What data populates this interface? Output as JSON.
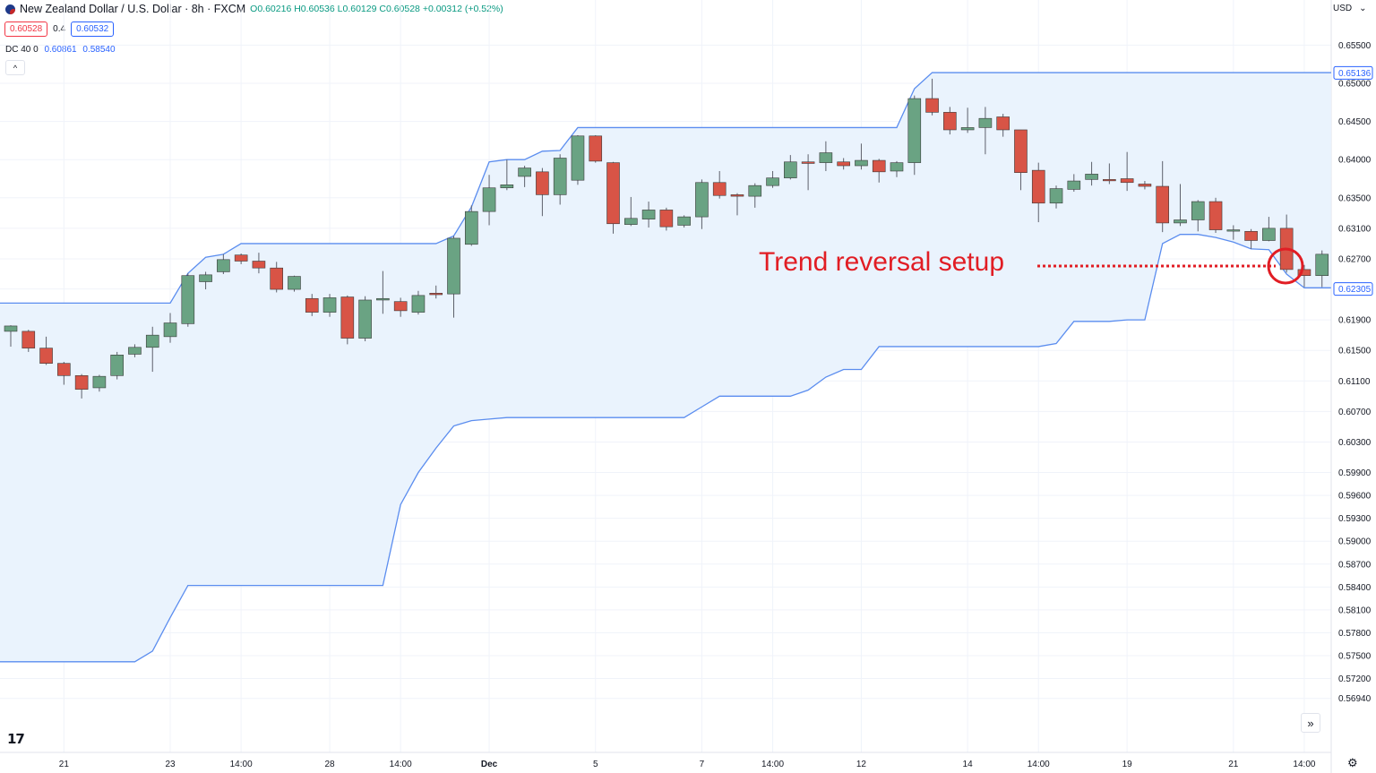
{
  "header": {
    "symbol": "New Zealand Dollar / U.S. Dollar · 8h · FXCM",
    "ohlc": "O0.60216 H0.60536 L0.60129 C0.60528 +0.00312 (+0.52%)",
    "sell_price": "0.60528",
    "spread": "0.4",
    "buy_price": "0.60532",
    "indicator_name": "DC 40 0",
    "indicator_upper": "0.60861",
    "indicator_lower": "0.58540",
    "collapse_icon": "^",
    "currency": "USD",
    "currency_icon": "⌄"
  },
  "controls": {
    "logo": "17",
    "scroll_icon": "»",
    "settings_icon": "⚙"
  },
  "annotation": {
    "text": "Trend reversal setup",
    "color": "#e11d24"
  },
  "colors": {
    "up": "#6aa383",
    "down": "#d85446",
    "channel_line": "#5b8def",
    "channel_fill": "#eaf3fd",
    "price_label": "#2962ff"
  },
  "chart_data": {
    "type": "candlestick",
    "title": "New Zealand Dollar / U.S. Dollar · 8h · FXCM",
    "ylim": [
      0.5675,
      0.6575
    ],
    "y_ticks": [
      "0.65500",
      "0.65000",
      "0.64500",
      "0.64000",
      "0.63500",
      "0.63100",
      "0.62700",
      "0.62305",
      "0.61900",
      "0.61500",
      "0.61100",
      "0.60700",
      "0.60300",
      "0.59900",
      "0.59600",
      "0.59300",
      "0.59000",
      "0.58700",
      "0.58400",
      "0.58100",
      "0.57800",
      "0.57500",
      "0.57200",
      "0.56940"
    ],
    "x_ticks": [
      {
        "label": "21",
        "i": 3
      },
      {
        "label": "23",
        "i": 9
      },
      {
        "label": "14:00",
        "i": 13
      },
      {
        "label": "28",
        "i": 18
      },
      {
        "label": "14:00",
        "i": 22
      },
      {
        "label": "Dec",
        "i": 27
      },
      {
        "label": "5",
        "i": 33
      },
      {
        "label": "7",
        "i": 39
      },
      {
        "label": "14:00",
        "i": 43
      },
      {
        "label": "12",
        "i": 48
      },
      {
        "label": "14",
        "i": 54
      },
      {
        "label": "14:00",
        "i": 58
      },
      {
        "label": "19",
        "i": 63
      },
      {
        "label": "21",
        "i": 69
      },
      {
        "label": "14:00",
        "i": 73
      }
    ],
    "price_labels": [
      {
        "value": "0.65136",
        "y": 0.65136
      },
      {
        "value": "0.62305",
        "y": 0.62305
      }
    ],
    "candles": [
      [
        0.6175,
        0.6182,
        0.6155,
        0.6183
      ],
      [
        0.6175,
        0.6153,
        0.6148,
        0.6177
      ],
      [
        0.6153,
        0.6133,
        0.6131,
        0.6168
      ],
      [
        0.6133,
        0.6117,
        0.6105,
        0.6135
      ],
      [
        0.6117,
        0.6099,
        0.6087,
        0.6119
      ],
      [
        0.6101,
        0.6116,
        0.6096,
        0.6118
      ],
      [
        0.6117,
        0.6144,
        0.6112,
        0.6148
      ],
      [
        0.6145,
        0.6154,
        0.6141,
        0.6158
      ],
      [
        0.6154,
        0.617,
        0.6122,
        0.6181
      ],
      [
        0.6168,
        0.6186,
        0.616,
        0.6199
      ],
      [
        0.6185,
        0.6248,
        0.6181,
        0.6251
      ],
      [
        0.624,
        0.6249,
        0.623,
        0.6253
      ],
      [
        0.6253,
        0.6269,
        0.625,
        0.6276
      ],
      [
        0.6275,
        0.6267,
        0.6263,
        0.6277
      ],
      [
        0.6267,
        0.6258,
        0.6251,
        0.6278
      ],
      [
        0.6258,
        0.623,
        0.6226,
        0.6266
      ],
      [
        0.623,
        0.6247,
        0.6227,
        0.6248
      ],
      [
        0.6218,
        0.62,
        0.6195,
        0.6224
      ],
      [
        0.62,
        0.6219,
        0.6194,
        0.6224
      ],
      [
        0.622,
        0.6166,
        0.6158,
        0.6222
      ],
      [
        0.6166,
        0.6216,
        0.6162,
        0.6221
      ],
      [
        0.6216,
        0.6218,
        0.6198,
        0.6254
      ],
      [
        0.6214,
        0.6202,
        0.6194,
        0.6219
      ],
      [
        0.62,
        0.6222,
        0.6197,
        0.6228
      ],
      [
        0.6225,
        0.6223,
        0.6218,
        0.6235
      ],
      [
        0.6224,
        0.6297,
        0.6193,
        0.63
      ],
      [
        0.6289,
        0.6332,
        0.6287,
        0.634
      ],
      [
        0.6332,
        0.6363,
        0.6314,
        0.638
      ],
      [
        0.6363,
        0.6367,
        0.636,
        0.64
      ],
      [
        0.6378,
        0.6389,
        0.6364,
        0.6392
      ],
      [
        0.6384,
        0.6354,
        0.6326,
        0.6389
      ],
      [
        0.6354,
        0.6402,
        0.6341,
        0.6407
      ],
      [
        0.6373,
        0.6431,
        0.6367,
        0.6432
      ],
      [
        0.6431,
        0.6398,
        0.6396,
        0.6432
      ],
      [
        0.6396,
        0.6316,
        0.6303,
        0.6397
      ],
      [
        0.6315,
        0.6323,
        0.6313,
        0.6351
      ],
      [
        0.6322,
        0.6334,
        0.6311,
        0.6345
      ],
      [
        0.6334,
        0.6312,
        0.6307,
        0.6337
      ],
      [
        0.6314,
        0.6325,
        0.6311,
        0.6327
      ],
      [
        0.6325,
        0.637,
        0.6309,
        0.6374
      ],
      [
        0.637,
        0.6353,
        0.6349,
        0.6385
      ],
      [
        0.6354,
        0.6352,
        0.6327,
        0.6356
      ],
      [
        0.6352,
        0.6366,
        0.6337,
        0.6369
      ],
      [
        0.6366,
        0.6376,
        0.6363,
        0.6385
      ],
      [
        0.6376,
        0.6397,
        0.6374,
        0.6406
      ],
      [
        0.6397,
        0.6395,
        0.636,
        0.6407
      ],
      [
        0.6396,
        0.6409,
        0.6385,
        0.6424
      ],
      [
        0.6397,
        0.6392,
        0.6387,
        0.6402
      ],
      [
        0.6392,
        0.6399,
        0.6387,
        0.6421
      ],
      [
        0.6399,
        0.6384,
        0.637,
        0.6401
      ],
      [
        0.6385,
        0.6396,
        0.6377,
        0.6398
      ],
      [
        0.6396,
        0.648,
        0.638,
        0.6484
      ],
      [
        0.648,
        0.6462,
        0.6458,
        0.6506
      ],
      [
        0.6462,
        0.6439,
        0.6433,
        0.6469
      ],
      [
        0.6439,
        0.6442,
        0.6435,
        0.6468
      ],
      [
        0.6442,
        0.6454,
        0.6407,
        0.6469
      ],
      [
        0.6456,
        0.6439,
        0.643,
        0.646
      ],
      [
        0.6439,
        0.6383,
        0.636,
        0.6439
      ],
      [
        0.6386,
        0.6343,
        0.6318,
        0.6396
      ],
      [
        0.6343,
        0.6362,
        0.6336,
        0.6366
      ],
      [
        0.6361,
        0.6372,
        0.6358,
        0.6381
      ],
      [
        0.6374,
        0.6381,
        0.6366,
        0.6397
      ],
      [
        0.6374,
        0.6373,
        0.6368,
        0.6395
      ],
      [
        0.6375,
        0.637,
        0.6359,
        0.641
      ],
      [
        0.6368,
        0.6365,
        0.6361,
        0.6372
      ],
      [
        0.6365,
        0.6317,
        0.6305,
        0.6398
      ],
      [
        0.6317,
        0.6321,
        0.6313,
        0.6368
      ],
      [
        0.6321,
        0.6345,
        0.6306,
        0.6347
      ],
      [
        0.6345,
        0.6308,
        0.6304,
        0.635
      ],
      [
        0.6307,
        0.6308,
        0.6295,
        0.6314
      ],
      [
        0.6306,
        0.6294,
        0.6283,
        0.6309
      ],
      [
        0.6294,
        0.631,
        0.6293,
        0.6325
      ],
      [
        0.631,
        0.6256,
        0.6252,
        0.6328
      ],
      [
        0.6256,
        0.6248,
        0.6233,
        0.6262
      ],
      [
        0.6248,
        0.6276,
        0.6233,
        0.6281
      ]
    ],
    "donchian_upper": [
      0.6212,
      0.6212,
      0.6212,
      0.6212,
      0.6212,
      0.6212,
      0.6212,
      0.6212,
      0.6212,
      0.6212,
      0.6251,
      0.6272,
      0.6276,
      0.629,
      0.629,
      0.629,
      0.629,
      0.629,
      0.629,
      0.629,
      0.629,
      0.629,
      0.629,
      0.629,
      0.629,
      0.63,
      0.6338,
      0.6397,
      0.64,
      0.64,
      0.6411,
      0.6412,
      0.6442,
      0.6442,
      0.6442,
      0.6442,
      0.6442,
      0.6442,
      0.6442,
      0.6442,
      0.6442,
      0.6442,
      0.6442,
      0.6442,
      0.6442,
      0.6442,
      0.6442,
      0.6442,
      0.6442,
      0.6442,
      0.6442,
      0.6493,
      0.6514,
      0.6514,
      0.6514,
      0.6514,
      0.6514,
      0.6514,
      0.6514,
      0.6514,
      0.6514,
      0.6514,
      0.6514,
      0.6514,
      0.6514,
      0.6514,
      0.6514,
      0.6514,
      0.6514,
      0.6514,
      0.6514,
      0.6514,
      0.6514,
      0.6514,
      0.6514
    ],
    "donchian_lower": [
      0.5742,
      0.5742,
      0.5742,
      0.5742,
      0.5742,
      0.5742,
      0.5742,
      0.5742,
      0.5756,
      0.58,
      0.5842,
      0.5842,
      0.5842,
      0.5842,
      0.5842,
      0.5842,
      0.5842,
      0.5842,
      0.5842,
      0.5842,
      0.5842,
      0.5842,
      0.5948,
      0.599,
      0.6022,
      0.6051,
      0.6058,
      0.606,
      0.6062,
      0.6062,
      0.6062,
      0.6062,
      0.6062,
      0.6062,
      0.6062,
      0.6062,
      0.6062,
      0.6062,
      0.6062,
      0.6076,
      0.609,
      0.609,
      0.609,
      0.609,
      0.609,
      0.6098,
      0.6115,
      0.6125,
      0.6125,
      0.6155,
      0.6155,
      0.6155,
      0.6155,
      0.6155,
      0.6155,
      0.6155,
      0.6155,
      0.6155,
      0.6155,
      0.6159,
      0.6188,
      0.6188,
      0.6188,
      0.619,
      0.619,
      0.629,
      0.6302,
      0.6302,
      0.6298,
      0.6292,
      0.6283,
      0.6282,
      0.625,
      0.6232,
      0.6232
    ]
  }
}
